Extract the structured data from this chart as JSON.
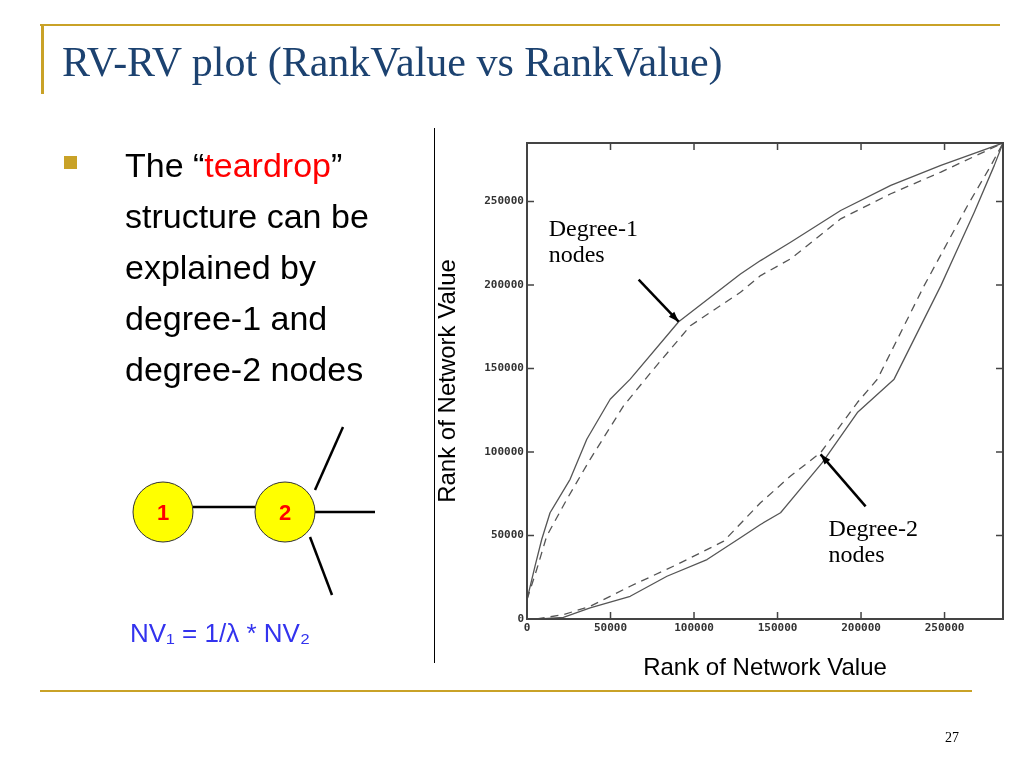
{
  "chart_data": {
    "type": "line",
    "title": "RV-RV plot (RankValue vs RankValue)",
    "xlabel": "Rank of Network Value",
    "ylabel": "Rank of Network Value",
    "xlim": [
      0,
      285000
    ],
    "ylim": [
      0,
      285000
    ],
    "xticks": [
      0,
      50000,
      100000,
      150000,
      200000,
      250000
    ],
    "yticks": [
      0,
      50000,
      100000,
      150000,
      200000,
      250000
    ],
    "grid": false,
    "legend": false,
    "marker": "none",
    "series": [
      {
        "color": "#555555",
        "line_style": "solid",
        "x": [
          0,
          4800,
          8800,
          13800,
          25800,
          35800,
          49800,
          61800,
          90800,
          127800,
          139800,
          157800,
          187800,
          217800,
          247800,
          285000
        ],
        "values": [
          11600,
          31600,
          47600,
          63600,
          83600,
          107600,
          131600,
          143600,
          178000,
          206600,
          214600,
          225600,
          244600,
          259600,
          271600,
          285000
        ]
      },
      {
        "color": "#555555",
        "line_style": "dashed",
        "x": [
          0,
          5800,
          11800,
          23800,
          37800,
          57800,
          75800,
          97800,
          127800,
          139800,
          157800,
          187800,
          217800,
          247800,
          285000
        ],
        "values": [
          11600,
          29600,
          49600,
          71600,
          95600,
          127600,
          149600,
          175600,
          195600,
          205600,
          215600,
          239600,
          254600,
          267600,
          285000
        ]
      },
      {
        "color": "#555555",
        "line_style": "solid",
        "x": [
          7800,
          21800,
          37800,
          61800,
          83800,
          107800,
          127800,
          139800,
          151800,
          176800,
          197800,
          219800,
          247800,
          267800,
          279800,
          285000
        ],
        "values": [
          0,
          1000,
          6600,
          13600,
          25600,
          35600,
          48600,
          56600,
          63600,
          93600,
          123600,
          143600,
          199600,
          243600,
          271600,
          285000
        ]
      },
      {
        "color": "#555555",
        "line_style": "dashed",
        "x": [
          5800,
          21800,
          37800,
          61800,
          89800,
          117800,
          139800,
          157800,
          175800,
          197800,
          209800,
          237800,
          263800,
          277800,
          285000
        ],
        "values": [
          0,
          2600,
          7600,
          19600,
          32600,
          46600,
          69600,
          85600,
          99600,
          129600,
          143600,
          199600,
          247600,
          271600,
          285000
        ]
      }
    ],
    "annotations": [
      "The “teardrop” structure can be explained by degree-1 and degree-2 nodes",
      "1",
      "2",
      "NV₁ = 1/λ * NV₂",
      "27",
      {
        "text": "Degree-1 nodes",
        "x": 90800,
        "y": 178000
      },
      {
        "text": "Degree-2 nodes",
        "x": 175800,
        "y": 98600
      }
    ]
  }
}
